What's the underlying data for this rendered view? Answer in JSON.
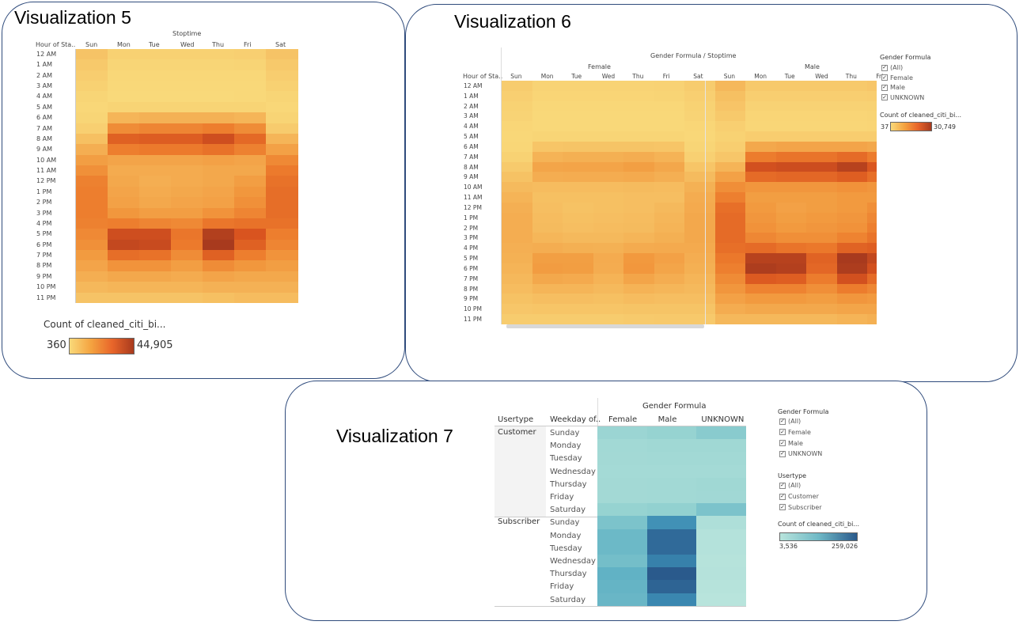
{
  "titles": {
    "v5": "Visualization 5",
    "v6": "Visualization 6",
    "v7": "Visualization 7"
  },
  "colors": {
    "orange_low": "#f9d97a",
    "orange_high": "#a83a1e",
    "teal_low": "#b8e4dc",
    "teal_high": "#2a5a8c",
    "panel_border": "#2f4b7c"
  },
  "chart_data": [
    {
      "type": "heatmap",
      "id": "v5",
      "header_label": "Stoptime",
      "row_header": "Hour of Sta..",
      "columns": [
        "Sun",
        "Mon",
        "Tue",
        "Wed",
        "Thu",
        "Fri",
        "Sat"
      ],
      "rows": [
        "12 AM",
        "1 AM",
        "2 AM",
        "3 AM",
        "4 AM",
        "5 AM",
        "6 AM",
        "7 AM",
        "8 AM",
        "9 AM",
        "10 AM",
        "11 AM",
        "12 PM",
        "1 PM",
        "2 PM",
        "3 PM",
        "4 PM",
        "5 PM",
        "6 PM",
        "7 PM",
        "8 PM",
        "9 PM",
        "10 PM",
        "11 PM"
      ],
      "values": [
        [
          6000,
          2500,
          2500,
          2500,
          2500,
          3000,
          6000
        ],
        [
          4500,
          1500,
          1500,
          1500,
          1500,
          1800,
          4500
        ],
        [
          3500,
          800,
          800,
          800,
          800,
          1000,
          3500
        ],
        [
          2500,
          500,
          500,
          500,
          500,
          600,
          2500
        ],
        [
          1500,
          400,
          400,
          400,
          400,
          500,
          1500
        ],
        [
          1000,
          1800,
          1800,
          1800,
          1800,
          1800,
          1000
        ],
        [
          1500,
          10000,
          11000,
          11000,
          11000,
          10000,
          1800
        ],
        [
          3000,
          22000,
          24000,
          24000,
          26000,
          22000,
          4000
        ],
        [
          7000,
          33000,
          34000,
          34000,
          38000,
          31000,
          10000
        ],
        [
          12000,
          26000,
          27000,
          27000,
          29000,
          25000,
          16000
        ],
        [
          17000,
          15000,
          15000,
          15000,
          16000,
          15000,
          23000
        ],
        [
          21000,
          13000,
          13000,
          13000,
          14000,
          14000,
          27000
        ],
        [
          25000,
          14000,
          12000,
          13000,
          14000,
          17000,
          29000
        ],
        [
          26000,
          15000,
          13000,
          14000,
          15000,
          19000,
          30000
        ],
        [
          26000,
          16000,
          14000,
          15000,
          16000,
          21000,
          30000
        ],
        [
          26000,
          19000,
          17000,
          17000,
          20000,
          24000,
          30000
        ],
        [
          25000,
          26000,
          24000,
          23000,
          28000,
          29000,
          29000
        ],
        [
          23000,
          38000,
          38000,
          28000,
          43000,
          36000,
          26000
        ],
        [
          21000,
          40000,
          39000,
          27000,
          44905,
          33000,
          24000
        ],
        [
          18000,
          30000,
          29000,
          22000,
          33000,
          26000,
          20000
        ],
        [
          15000,
          20000,
          20000,
          17000,
          22000,
          19000,
          17000
        ],
        [
          12000,
          14000,
          14000,
          13000,
          15000,
          14000,
          14000
        ],
        [
          9000,
          10000,
          10000,
          10000,
          11000,
          11000,
          11000
        ],
        [
          6000,
          6000,
          6000,
          6000,
          7000,
          8000,
          8000
        ]
      ],
      "legend": {
        "title": "Count of cleaned_citi_bi...",
        "min": "360",
        "max": "44,905",
        "min_value": 360,
        "max_value": 44905
      }
    },
    {
      "type": "heatmap",
      "id": "v6",
      "header_label": "Gender Formula / Stoptime",
      "groups": [
        "Female",
        "Male"
      ],
      "row_header": "Hour of Sta..",
      "columns": [
        "Sun",
        "Mon",
        "Tue",
        "Wed",
        "Thu",
        "Fri",
        "Sat",
        "Sun",
        "Mon",
        "Tue",
        "Wed",
        "Thu",
        "Fri"
      ],
      "rows": [
        "12 AM",
        "1 AM",
        "2 AM",
        "3 AM",
        "4 AM",
        "5 AM",
        "6 AM",
        "7 AM",
        "8 AM",
        "9 AM",
        "10 AM",
        "11 AM",
        "12 PM",
        "1 PM",
        "2 PM",
        "3 PM",
        "4 PM",
        "5 PM",
        "6 PM",
        "7 PM",
        "8 PM",
        "9 PM",
        "10 PM",
        "11 PM"
      ],
      "values": [
        [
          1500,
          600,
          600,
          600,
          600,
          700,
          1500,
          4500,
          2000,
          2000,
          2000,
          2000,
          2300
        ],
        [
          1100,
          400,
          400,
          400,
          400,
          500,
          1100,
          3300,
          1200,
          1200,
          1200,
          1200,
          1400
        ],
        [
          800,
          200,
          200,
          200,
          200,
          250,
          800,
          2600,
          700,
          700,
          700,
          700,
          800
        ],
        [
          600,
          120,
          120,
          120,
          120,
          150,
          600,
          1900,
          400,
          400,
          400,
          400,
          500
        ],
        [
          350,
          100,
          100,
          100,
          100,
          120,
          350,
          1100,
          350,
          350,
          350,
          350,
          400
        ],
        [
          250,
          450,
          450,
          450,
          450,
          450,
          250,
          800,
          1400,
          1400,
          1400,
          1400,
          1400
        ],
        [
          350,
          2500,
          2700,
          2700,
          2700,
          2500,
          450,
          1200,
          7500,
          8300,
          8300,
          8300,
          7500
        ],
        [
          750,
          5500,
          6000,
          6000,
          6500,
          5500,
          1000,
          2300,
          16500,
          18000,
          18000,
          19500,
          16500
        ],
        [
          1800,
          8200,
          8500,
          8500,
          9500,
          7800,
          2500,
          5200,
          24700,
          25500,
          25500,
          28500,
          23200
        ],
        [
          3000,
          6500,
          6800,
          6800,
          7200,
          6200,
          4000,
          9000,
          19500,
          20200,
          20200,
          21800,
          18800
        ],
        [
          4200,
          3800,
          3800,
          3800,
          4000,
          3800,
          5800,
          12800,
          11200,
          11200,
          11200,
          12000,
          11200
        ],
        [
          5200,
          3300,
          3300,
          3300,
          3500,
          3500,
          6800,
          15800,
          9700,
          9700,
          9700,
          10500,
          10500
        ],
        [
          6200,
          3500,
          3000,
          3300,
          3500,
          4300,
          7200,
          18800,
          10500,
          9000,
          9700,
          10500,
          12700
        ],
        [
          6500,
          3800,
          3300,
          3500,
          3800,
          4800,
          7500,
          19500,
          11200,
          9700,
          10500,
          11200,
          14200
        ],
        [
          6500,
          4000,
          3500,
          3800,
          4000,
          5200,
          7500,
          19500,
          12000,
          10500,
          11200,
          12000,
          15800
        ],
        [
          6500,
          4800,
          4300,
          4300,
          5000,
          6000,
          7500,
          19500,
          14200,
          12700,
          12700,
          15000,
          18000
        ],
        [
          6200,
          6500,
          6000,
          5800,
          7000,
          7200,
          7200,
          18800,
          19500,
          18000,
          17200,
          21000,
          21800
        ],
        [
          5800,
          9500,
          9500,
          7000,
          10700,
          9000,
          6500,
          17200,
          28500,
          28500,
          21000,
          30749,
          27000
        ],
        [
          5200,
          10000,
          9700,
          6800,
          11000,
          8200,
          6000,
          15800,
          30000,
          29200,
          20200,
          30000,
          24700
        ],
        [
          4500,
          7500,
          7200,
          5500,
          8200,
          6500,
          5000,
          13500,
          22500,
          21800,
          16500,
          24700,
          19500
        ],
        [
          3800,
          5000,
          5000,
          4300,
          5500,
          4800,
          4300,
          11200,
          15000,
          15000,
          12700,
          16500,
          14200
        ],
        [
          3000,
          3500,
          3500,
          3300,
          3800,
          3500,
          3500,
          9000,
          10500,
          10500,
          9700,
          11200,
          10500
        ],
        [
          2300,
          2500,
          2500,
          2500,
          2700,
          2700,
          2700,
          6800,
          7500,
          7500,
          7500,
          8200,
          8200
        ],
        [
          1500,
          1500,
          1500,
          1500,
          1800,
          2000,
          2000,
          4500,
          4500,
          4500,
          4500,
          5200,
          6000
        ]
      ],
      "filter": {
        "title": "Gender Formula",
        "items": [
          "(All)",
          "Female",
          "Male",
          "UNKNOWN"
        ]
      },
      "legend": {
        "title": "Count of cleaned_citi_bi...",
        "min": "37",
        "max": "30,749",
        "min_value": 37,
        "max_value": 30749
      }
    },
    {
      "type": "heatmap",
      "id": "v7",
      "header_label": "Gender Formula",
      "row_headers": [
        "Usertype",
        "Weekday of.."
      ],
      "columns": [
        "Female",
        "Male",
        "UNKNOWN"
      ],
      "groups": [
        {
          "name": "Customer",
          "days": [
            "Sunday",
            "Monday",
            "Tuesday",
            "Wednesday",
            "Thursday",
            "Friday",
            "Saturday"
          ],
          "values": [
            [
              25000,
              30000,
              45000
            ],
            [
              18000,
              20000,
              20000
            ],
            [
              17000,
              18000,
              18000
            ],
            [
              16000,
              16000,
              16000
            ],
            [
              17000,
              18000,
              20000
            ],
            [
              17000,
              18000,
              19000
            ],
            [
              30000,
              35000,
              60000
            ]
          ]
        },
        {
          "name": "Subscriber",
          "days": [
            "Sunday",
            "Monday",
            "Tuesday",
            "Wednesday",
            "Thursday",
            "Friday",
            "Saturday"
          ],
          "values": [
            [
              60000,
              160000,
              8000
            ],
            [
              80000,
              230000,
              5000
            ],
            [
              80000,
              230000,
              5000
            ],
            [
              70000,
              190000,
              4000
            ],
            [
              95000,
              259026,
              4500
            ],
            [
              90000,
              240000,
              4000
            ],
            [
              85000,
              180000,
              3536
            ]
          ]
        }
      ],
      "filters": [
        {
          "title": "Gender Formula",
          "items": [
            "(All)",
            "Female",
            "Male",
            "UNKNOWN"
          ]
        },
        {
          "title": "Usertype",
          "items": [
            "(All)",
            "Customer",
            "Subscriber"
          ]
        }
      ],
      "legend": {
        "title": "Count of cleaned_citi_bi...",
        "min": "3,536",
        "max": "259,026",
        "min_value": 3536,
        "max_value": 259026
      }
    }
  ]
}
